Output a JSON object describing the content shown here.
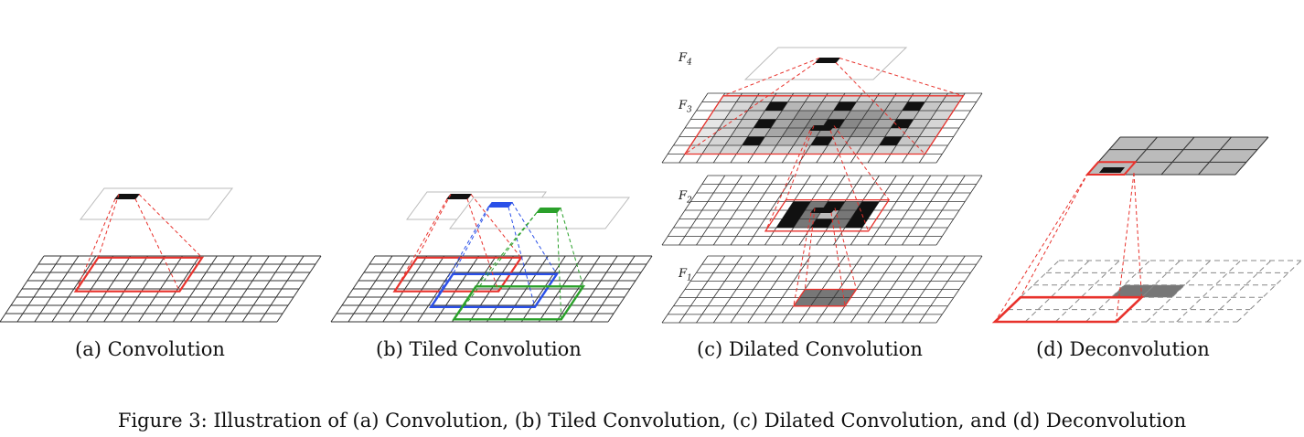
{
  "panels": [
    {
      "id": "a",
      "caption": "(a) Convolution"
    },
    {
      "id": "b",
      "caption": "(b) Tiled Convolution"
    },
    {
      "id": "c",
      "caption": "(c) Dilated Convolution"
    },
    {
      "id": "d",
      "caption": "(d) Deconvolution"
    }
  ],
  "dilated_layer_labels": {
    "f4": "F",
    "f4_sub": "4",
    "f3": "F",
    "f3_sub": "3",
    "f2": "F",
    "f2_sub": "2",
    "f1": "F",
    "f1_sub": "1"
  },
  "figure_caption": "Figure 3: Illustration of (a) Convolution, (b) Tiled Convolution, (c) Dilated Convolution, and (d) Deconvolution",
  "colors": {
    "kernel_red": "#e8322c",
    "kernel_blue": "#2a50e8",
    "kernel_green": "#2aa02a",
    "grid": "#333333",
    "dark_cell": "#111111",
    "shade_dark": "#777777",
    "shade_light": "#bbbbbb"
  }
}
